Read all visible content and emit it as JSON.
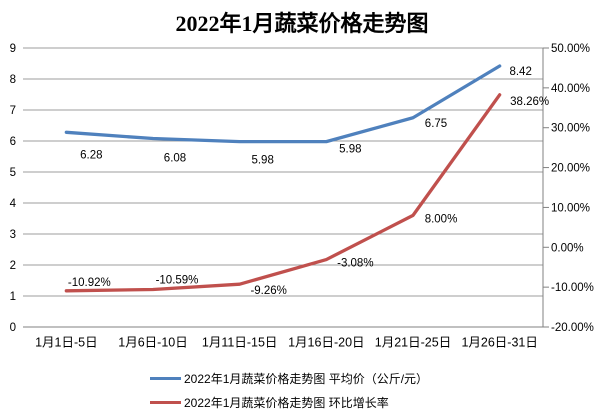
{
  "chart_data": {
    "type": "line",
    "title": "2022年1月蔬菜价格走势图",
    "categories": [
      "1月1日-5日",
      "1月6日-10日",
      "1月11日-15日",
      "1月16日-20日",
      "1月21日-25日",
      "1月26日-31日"
    ],
    "series": [
      {
        "name": "2022年1月蔬菜价格走势图 平均价（公斤/元）",
        "axis": "left",
        "color": "#4F81BD",
        "values": [
          6.28,
          6.08,
          5.98,
          5.98,
          6.75,
          8.42
        ],
        "labels": [
          "6.28",
          "6.08",
          "5.98",
          "5.98",
          "6.75",
          "8.42"
        ]
      },
      {
        "name": "2022年1月蔬菜价格走势图 环比增长率",
        "axis": "right",
        "color": "#C0504D",
        "values": [
          -10.92,
          -10.59,
          -9.26,
          -3.08,
          8.0,
          38.26
        ],
        "labels": [
          "-10.92%",
          "-10.59%",
          "-9.26%",
          "-3.08%",
          "8.00%",
          "38.26%"
        ]
      }
    ],
    "y_left": {
      "min": 0,
      "max": 9,
      "step": 1,
      "tick_labels": [
        "0",
        "1",
        "2",
        "3",
        "4",
        "5",
        "6",
        "7",
        "8",
        "9"
      ]
    },
    "y_right": {
      "min": -20,
      "max": 50,
      "step": 10,
      "tick_labels": [
        "-20.00%",
        "-10.00%",
        "0.00%",
        "10.00%",
        "20.00%",
        "30.00%",
        "40.00%",
        "50.00%"
      ]
    },
    "grid": true,
    "legend_position": "bottom"
  },
  "colors": {
    "gridline": "#9E9E9E",
    "axis_line": "#808080",
    "text": "#000000",
    "background": "#FFFFFF"
  }
}
